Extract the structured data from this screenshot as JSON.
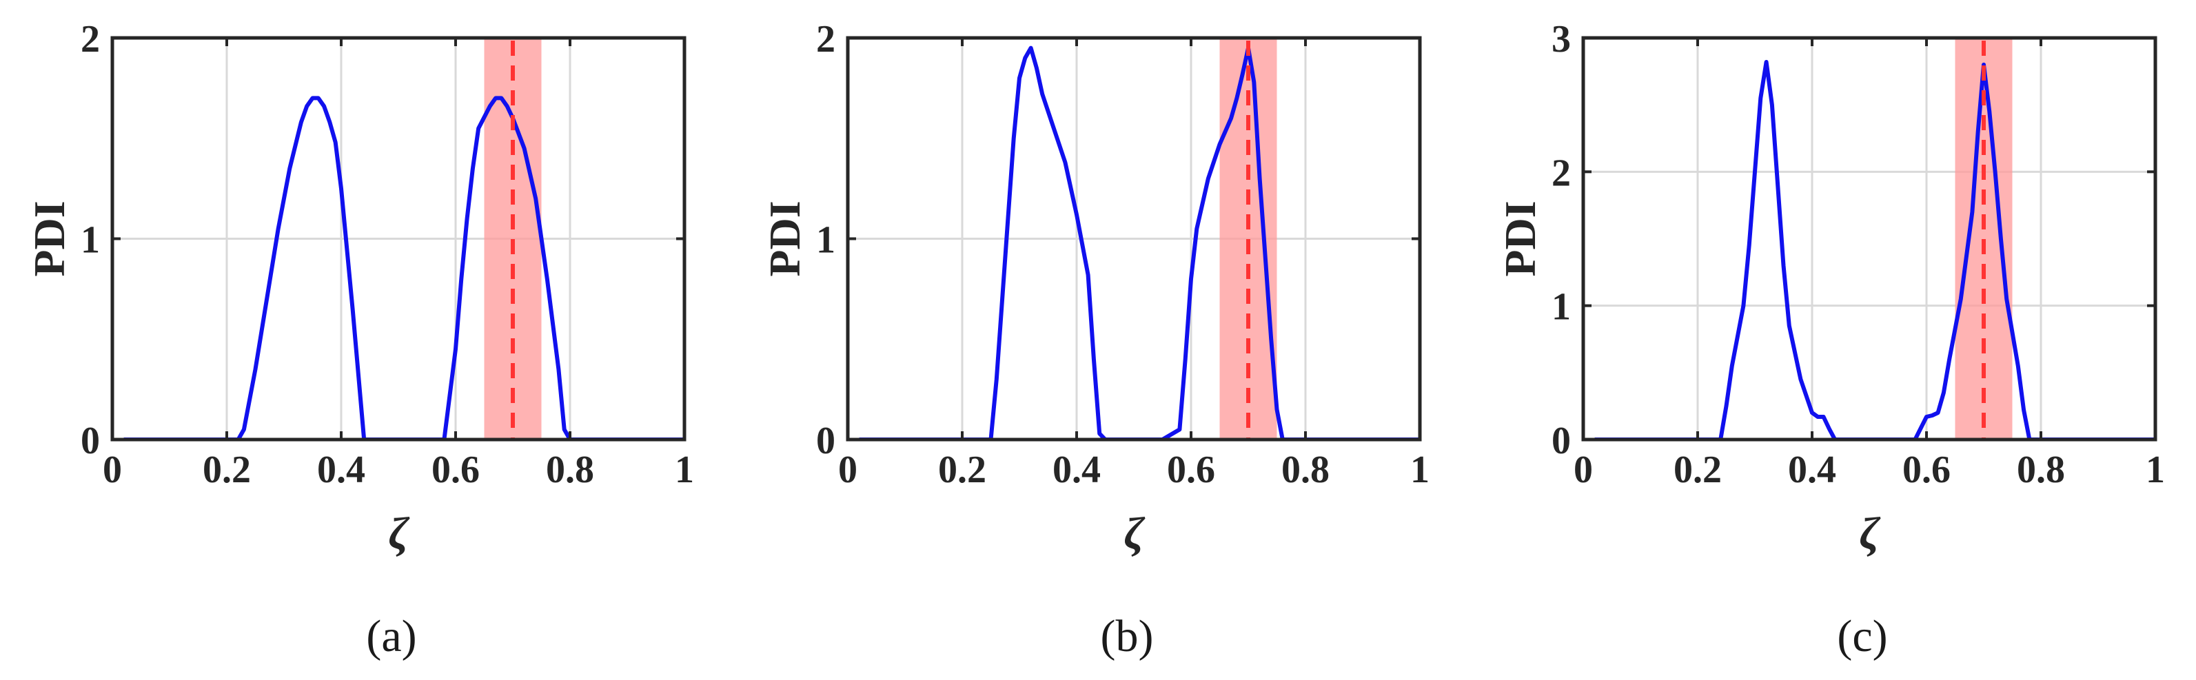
{
  "chart_data": [
    {
      "type": "line",
      "panel_label": "(a)",
      "xlabel": "ζ",
      "ylabel": "PDI",
      "xlim": [
        0,
        1
      ],
      "ylim": [
        0,
        2
      ],
      "xticks": [
        0,
        0.2,
        0.4,
        0.6,
        0.8,
        1
      ],
      "xtick_labels": [
        "0",
        "0.2",
        "0.4",
        "0.6",
        "0.8",
        "1"
      ],
      "yticks": [
        0,
        1,
        2
      ],
      "ytick_labels": [
        "0",
        "1",
        "2"
      ],
      "grid": true,
      "highlight_band": {
        "x": [
          0.65,
          0.75
        ],
        "color": "#ff9a9a"
      },
      "reference_line": {
        "x": 0.7,
        "color": "#ff3333",
        "style": "dashed"
      },
      "series": [
        {
          "color": "#1010ee",
          "x": [
            0.02,
            0.2,
            0.22,
            0.23,
            0.25,
            0.27,
            0.29,
            0.31,
            0.33,
            0.34,
            0.35,
            0.36,
            0.37,
            0.38,
            0.39,
            0.4,
            0.42,
            0.44,
            0.46,
            0.5,
            0.54,
            0.58,
            0.6,
            0.61,
            0.62,
            0.63,
            0.64,
            0.66,
            0.67,
            0.68,
            0.69,
            0.7,
            0.72,
            0.74,
            0.76,
            0.78,
            0.79,
            0.8,
            0.85,
            0.9,
            0.95,
            1.0
          ],
          "y": [
            0,
            0,
            0,
            0.05,
            0.35,
            0.7,
            1.05,
            1.35,
            1.58,
            1.66,
            1.7,
            1.7,
            1.66,
            1.58,
            1.48,
            1.25,
            0.65,
            0.0,
            0,
            0,
            0,
            0,
            0.45,
            0.8,
            1.1,
            1.35,
            1.55,
            1.66,
            1.7,
            1.7,
            1.66,
            1.6,
            1.45,
            1.2,
            0.8,
            0.35,
            0.05,
            0,
            0,
            0,
            0,
            0
          ]
        }
      ]
    },
    {
      "type": "line",
      "panel_label": "(b)",
      "xlabel": "ζ",
      "ylabel": "PDI",
      "xlim": [
        0,
        1
      ],
      "ylim": [
        0,
        2
      ],
      "xticks": [
        0,
        0.2,
        0.4,
        0.6,
        0.8,
        1
      ],
      "xtick_labels": [
        "0",
        "0.2",
        "0.4",
        "0.6",
        "0.8",
        "1"
      ],
      "yticks": [
        0,
        1,
        2
      ],
      "ytick_labels": [
        "0",
        "1",
        "2"
      ],
      "grid": true,
      "highlight_band": {
        "x": [
          0.65,
          0.75
        ],
        "color": "#ff9a9a"
      },
      "reference_line": {
        "x": 0.7,
        "color": "#ff3333",
        "style": "dashed"
      },
      "series": [
        {
          "color": "#1010ee",
          "x": [
            0.02,
            0.2,
            0.25,
            0.26,
            0.27,
            0.28,
            0.29,
            0.3,
            0.31,
            0.32,
            0.33,
            0.34,
            0.36,
            0.38,
            0.4,
            0.42,
            0.43,
            0.44,
            0.45,
            0.5,
            0.55,
            0.58,
            0.59,
            0.6,
            0.61,
            0.63,
            0.65,
            0.67,
            0.68,
            0.69,
            0.7,
            0.71,
            0.72,
            0.73,
            0.74,
            0.75,
            0.76,
            0.8,
            0.9,
            1.0
          ],
          "y": [
            0,
            0,
            0,
            0.3,
            0.7,
            1.1,
            1.5,
            1.8,
            1.9,
            1.95,
            1.85,
            1.72,
            1.55,
            1.38,
            1.12,
            0.82,
            0.4,
            0.03,
            0,
            0,
            0,
            0.05,
            0.4,
            0.8,
            1.05,
            1.3,
            1.47,
            1.6,
            1.7,
            1.82,
            1.95,
            1.78,
            1.3,
            0.9,
            0.5,
            0.15,
            0,
            0,
            0,
            0
          ]
        }
      ]
    },
    {
      "type": "line",
      "panel_label": "(c)",
      "xlabel": "ζ",
      "ylabel": "PDI",
      "xlim": [
        0,
        1
      ],
      "ylim": [
        0,
        3
      ],
      "xticks": [
        0,
        0.2,
        0.4,
        0.6,
        0.8,
        1
      ],
      "xtick_labels": [
        "0",
        "0.2",
        "0.4",
        "0.6",
        "0.8",
        "1"
      ],
      "yticks": [
        0,
        1,
        2,
        3
      ],
      "ytick_labels": [
        "0",
        "1",
        "2",
        "3"
      ],
      "grid": true,
      "highlight_band": {
        "x": [
          0.65,
          0.75
        ],
        "color": "#ff9a9a"
      },
      "reference_line": {
        "x": 0.7,
        "color": "#ff3333",
        "style": "dashed"
      },
      "series": [
        {
          "color": "#1010ee",
          "x": [
            0.02,
            0.2,
            0.24,
            0.25,
            0.26,
            0.28,
            0.29,
            0.3,
            0.31,
            0.32,
            0.33,
            0.34,
            0.35,
            0.36,
            0.38,
            0.4,
            0.41,
            0.42,
            0.43,
            0.44,
            0.5,
            0.55,
            0.58,
            0.6,
            0.61,
            0.62,
            0.63,
            0.64,
            0.66,
            0.68,
            0.69,
            0.7,
            0.71,
            0.72,
            0.73,
            0.74,
            0.76,
            0.77,
            0.78,
            0.85,
            0.9,
            1.0
          ],
          "y": [
            0,
            0,
            0,
            0.25,
            0.55,
            1.0,
            1.45,
            2.0,
            2.55,
            2.82,
            2.5,
            1.9,
            1.3,
            0.85,
            0.45,
            0.2,
            0.17,
            0.17,
            0.08,
            0,
            0,
            0,
            0,
            0.17,
            0.18,
            0.2,
            0.35,
            0.6,
            1.05,
            1.7,
            2.3,
            2.8,
            2.45,
            2.0,
            1.5,
            1.05,
            0.55,
            0.22,
            0,
            0,
            0,
            0
          ]
        }
      ]
    }
  ]
}
